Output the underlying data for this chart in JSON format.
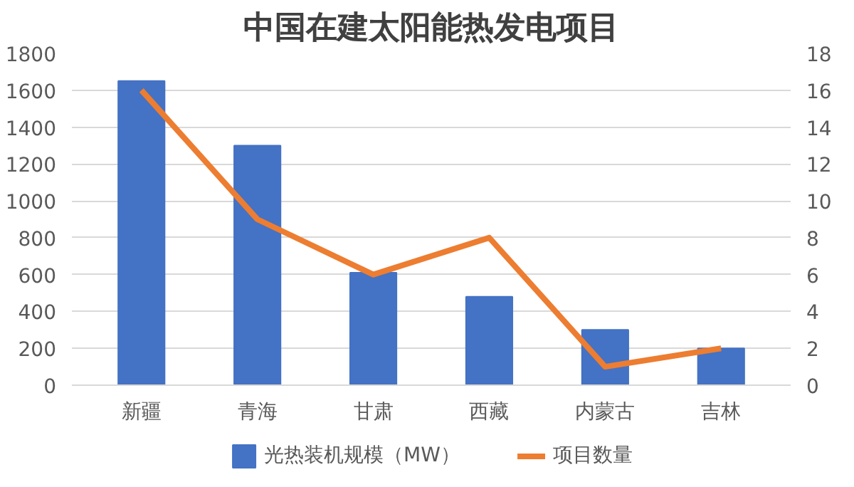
{
  "chart_data": {
    "type": "bar",
    "title": "中国在建太阳能热发电项目",
    "categories": [
      "新疆",
      "青海",
      "甘肃",
      "西藏",
      "内蒙古",
      "吉林"
    ],
    "series": [
      {
        "name": "光热装机规模（MW）",
        "color": "#4472c4",
        "values": [
          1650,
          1300,
          610,
          480,
          300,
          200
        ]
      },
      {
        "name": "项目数量",
        "type": "line",
        "axis": "y2",
        "color": "#ed7d31",
        "values": [
          16,
          9,
          6,
          8,
          1,
          2
        ]
      }
    ],
    "ylim": [
      0,
      1800
    ],
    "yticks": [
      0,
      200,
      400,
      600,
      800,
      1000,
      1200,
      1400,
      1600,
      1800
    ],
    "y2lim": [
      0,
      18
    ],
    "y2ticks": [
      0,
      2,
      4,
      6,
      8,
      10,
      12,
      14,
      16,
      18
    ],
    "grid": "y",
    "legend": "bottom"
  }
}
